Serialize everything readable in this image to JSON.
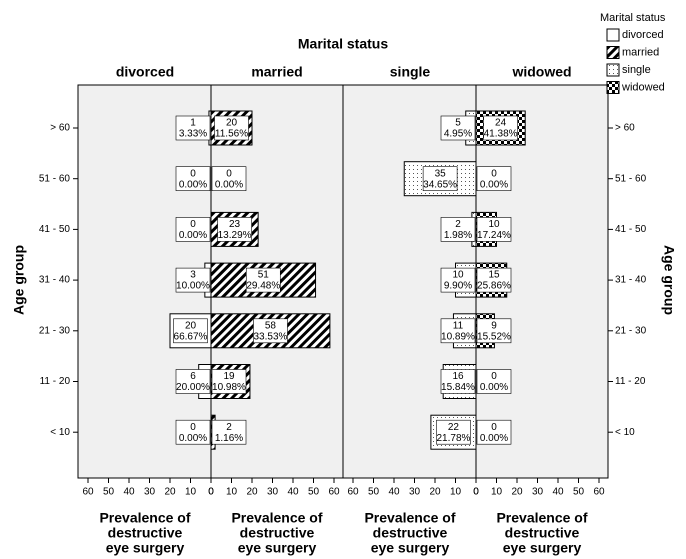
{
  "chart_data": {
    "type": "pyramid",
    "title": "Marital status",
    "y_label": "Age group",
    "x_label": [
      "Prevalence of",
      "destructive",
      "eye surgery"
    ],
    "categories": [
      "> 60",
      "51 - 60",
      "41 - 50",
      "31 - 40",
      "21 - 30",
      "11 - 20",
      "< 10"
    ],
    "xlim": [
      0,
      60
    ],
    "xticks": [
      0,
      10,
      20,
      30,
      40,
      50,
      60
    ],
    "legend_title": "Marital status",
    "legend_position": "top-right",
    "series": [
      {
        "name": "divorced",
        "pattern": "none",
        "values": [
          1,
          0,
          0,
          3,
          20,
          6,
          0
        ],
        "percent_labels": [
          "3.33%",
          "0.00%",
          "0.00%",
          "10.00%",
          "66.67%",
          "20.00%",
          "0.00%"
        ]
      },
      {
        "name": "married",
        "pattern": "hatch",
        "values": [
          20,
          0,
          23,
          51,
          58,
          19,
          2
        ],
        "percent_labels": [
          "11.56%",
          "0.00%",
          "13.29%",
          "29.48%",
          "33.53%",
          "10.98%",
          "1.16%"
        ]
      },
      {
        "name": "single",
        "pattern": "dots",
        "values": [
          5,
          35,
          2,
          10,
          11,
          16,
          22
        ],
        "percent_labels": [
          "4.95%",
          "34.65%",
          "1.98%",
          "9.90%",
          "10.89%",
          "15.84%",
          "21.78%"
        ]
      },
      {
        "name": "widowed",
        "pattern": "checker",
        "values": [
          24,
          0,
          10,
          15,
          9,
          0,
          0
        ],
        "percent_labels": [
          "41.38%",
          "0.00%",
          "17.24%",
          "25.86%",
          "15.52%",
          "0.00%",
          "0.00%"
        ]
      }
    ]
  }
}
